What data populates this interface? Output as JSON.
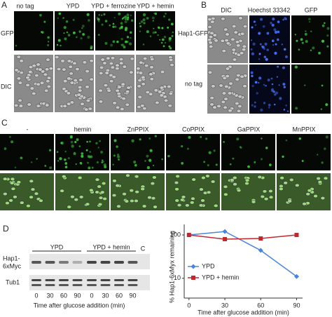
{
  "panels": {
    "a": {
      "label": "A",
      "columns": [
        "no tag",
        "YPD",
        "YPD + ferrozine",
        "YPD + hemin"
      ],
      "rows": [
        "GFP",
        "DIC"
      ]
    },
    "b": {
      "label": "B",
      "columns": [
        "DIC",
        "Hoechst 33342",
        "GFP"
      ],
      "rows": [
        "Hap1-GFP",
        "no tag"
      ]
    },
    "c": {
      "label": "C",
      "columns": [
        "-",
        "hemin",
        "ZnPPIX",
        "CoPPIX",
        "GaPPIX",
        "MnPPIX"
      ]
    },
    "d": {
      "label": "D",
      "groups": [
        "YPD",
        "YPD + hemin"
      ],
      "control": "C",
      "target": [
        "Hap1-",
        "6xMyc"
      ],
      "loading": "Tub1",
      "lanes": [
        "0",
        "30",
        "60",
        "90",
        "0",
        "30",
        "60",
        "90"
      ],
      "xlabel": "Time after glucose addition (min)"
    }
  },
  "chart_data": {
    "type": "line",
    "ylabel": "% Hap1-6xMyx remaining",
    "xlabel": "Time after glucose addition (min)",
    "x": [
      0,
      30,
      60,
      90
    ],
    "series": [
      {
        "name": "YPD",
        "color": "#4a86d8",
        "marker": "diamond",
        "values": [
          100,
          120,
          44,
          11
        ]
      },
      {
        "name": "YPD + hemin",
        "color": "#c0282d",
        "marker": "square",
        "values": [
          100,
          80,
          83,
          100
        ]
      }
    ],
    "xlim": [
      -4,
      95
    ],
    "xticks": [
      0,
      30,
      60,
      90
    ],
    "ylim": [
      3.5,
      175
    ],
    "yticks": [
      10,
      100
    ],
    "log_y": true,
    "legend": "lower left"
  }
}
